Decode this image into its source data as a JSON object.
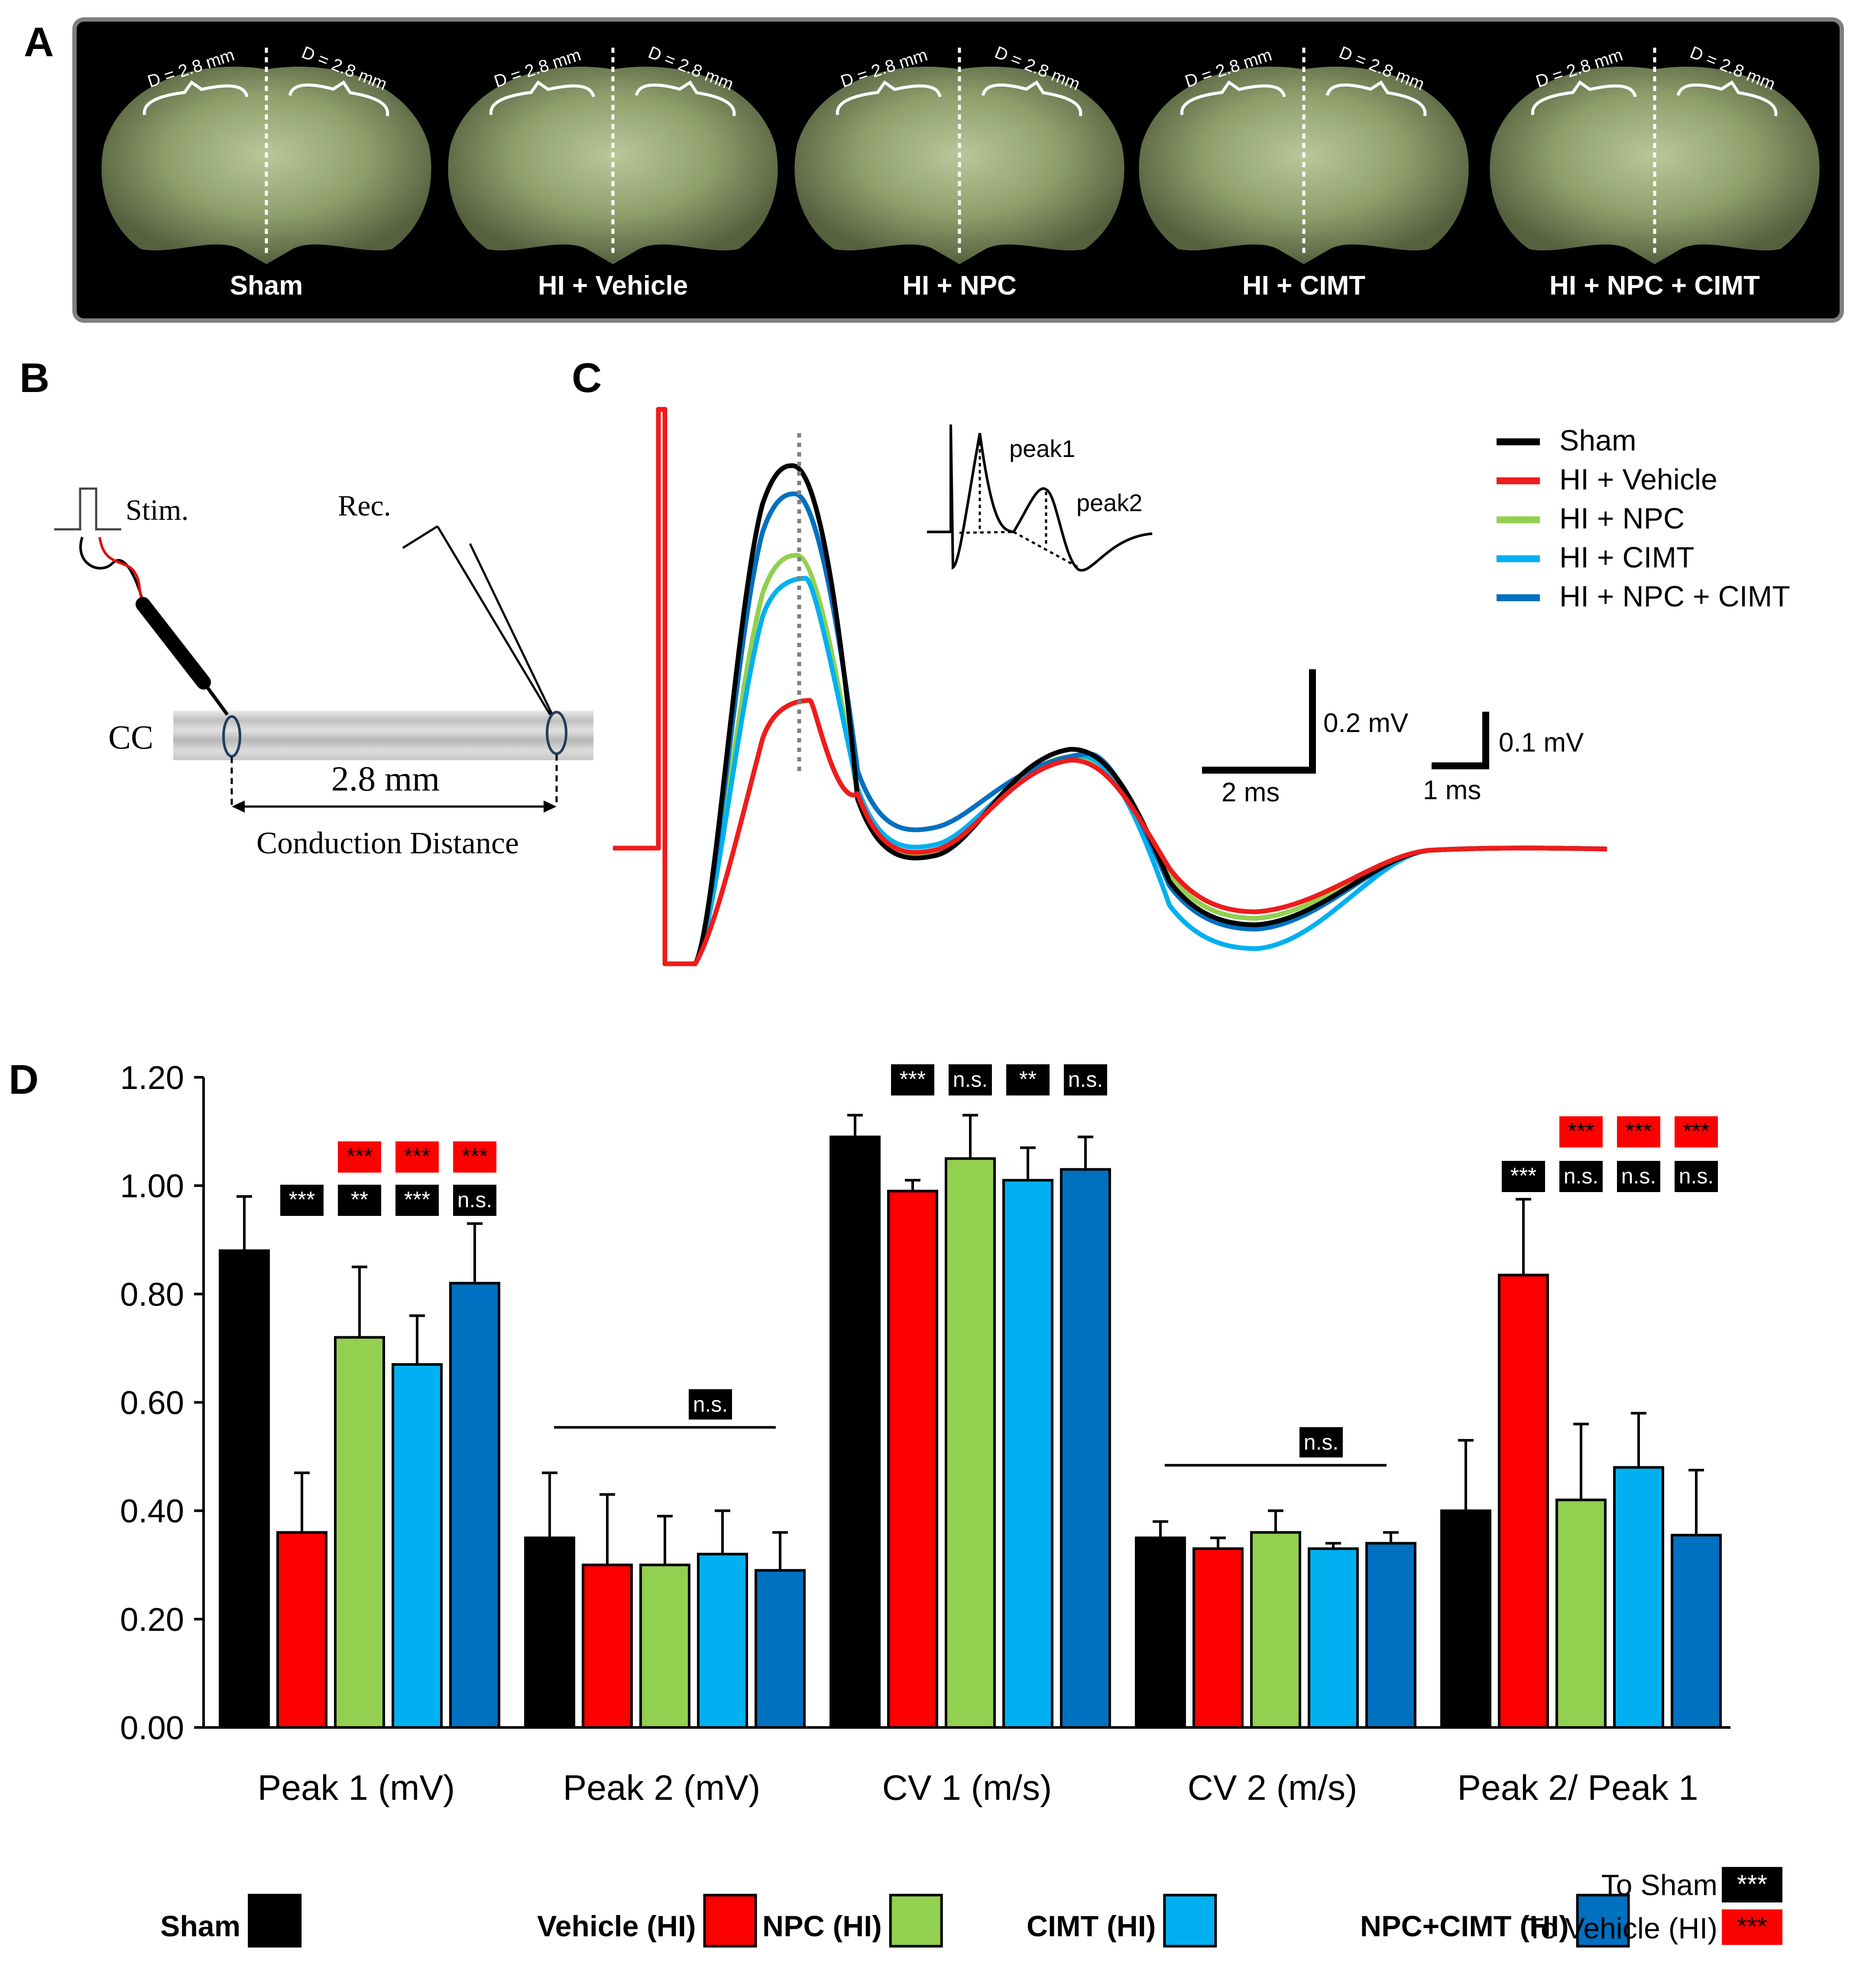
{
  "panels": {
    "a": "A",
    "b": "B",
    "c": "C",
    "d": "D"
  },
  "panel_a": {
    "distance_label": "D = 2.8 mm",
    "groups": [
      "Sham",
      "HI + Vehicle",
      "HI + NPC",
      "HI + CIMT",
      "HI + NPC + CIMT"
    ],
    "colors": {
      "frame": "#111111",
      "tissue": "#9aa87c",
      "text": "#ffffff"
    }
  },
  "panel_b": {
    "stim_label": "Stim.",
    "rec_label": "Rec.",
    "cc_label": "CC",
    "distance_label": "2.8 mm",
    "conduction_label": "Conduction Distance"
  },
  "panel_c": {
    "legend": [
      {
        "label": "Sham",
        "color": "#000000"
      },
      {
        "label": "HI + Vehicle",
        "color": "#ee1c1c"
      },
      {
        "label": "HI + NPC",
        "color": "#92d050"
      },
      {
        "label": "HI + CIMT",
        "color": "#00b0f0"
      },
      {
        "label": "HI + NPC + CIMT",
        "color": "#0070c0"
      }
    ],
    "inset_labels": {
      "peak1": "peak1",
      "peak2": "peak2"
    },
    "scale_bars": [
      {
        "vertical": "0.2 mV",
        "horizontal": "2 ms"
      },
      {
        "vertical": "0.1 mV",
        "horizontal": "1 ms"
      }
    ]
  },
  "chart_data": {
    "type": "bar",
    "title": "",
    "xlabel": "",
    "ylabel": "",
    "ylim": [
      0,
      1.2
    ],
    "yticks": [
      "0.00",
      "0.20",
      "0.40",
      "0.60",
      "0.80",
      "1.00",
      "1.20"
    ],
    "categories": [
      "Peak 1 (mV)",
      "Peak 2  (mV)",
      "CV 1 (m/s)",
      "CV 2 (m/s)",
      "Peak 2/ Peak 1"
    ],
    "series": [
      {
        "name": "Sham",
        "color": "#000000",
        "values": [
          0.88,
          0.35,
          1.09,
          0.35,
          0.4
        ],
        "errors": [
          0.1,
          0.12,
          0.04,
          0.03,
          0.13
        ]
      },
      {
        "name": "Vehicle (HI)",
        "color": "#ff0000",
        "values": [
          0.36,
          0.3,
          0.99,
          0.33,
          0.835
        ],
        "errors": [
          0.11,
          0.13,
          0.02,
          0.02,
          0.14
        ]
      },
      {
        "name": "NPC (HI)",
        "color": "#92d050",
        "values": [
          0.72,
          0.3,
          1.05,
          0.36,
          0.42
        ],
        "errors": [
          0.13,
          0.09,
          0.08,
          0.04,
          0.14
        ]
      },
      {
        "name": "CIMT (HI)",
        "color": "#00b0f0",
        "values": [
          0.67,
          0.32,
          1.01,
          0.33,
          0.48
        ],
        "errors": [
          0.09,
          0.08,
          0.06,
          0.01,
          0.1
        ]
      },
      {
        "name": "NPC+CIMT (HI)",
        "color": "#0070c0",
        "values": [
          0.82,
          0.29,
          1.03,
          0.34,
          0.355
        ],
        "errors": [
          0.11,
          0.07,
          0.06,
          0.02,
          0.12
        ]
      }
    ],
    "significance": {
      "to_sham": [
        [
          "",
          "***",
          "**",
          "***",
          "n.s."
        ],
        [
          "",
          "",
          "",
          "",
          ""
        ],
        [
          "",
          "***",
          "n.s.",
          "**",
          "n.s."
        ],
        [
          "",
          "",
          "",
          "",
          ""
        ],
        [
          "",
          "***",
          "n.s.",
          "n.s.",
          "n.s."
        ]
      ],
      "to_vehicle": [
        [
          "",
          "",
          "***",
          "***",
          "***"
        ],
        [
          "",
          "",
          "",
          "",
          ""
        ],
        [
          "",
          "",
          "",
          "",
          ""
        ],
        [
          "",
          "",
          "",
          "",
          ""
        ],
        [
          "",
          "",
          "***",
          "***",
          "***"
        ]
      ],
      "group_ns": [
        "",
        "n.s.",
        "",
        "n.s.",
        ""
      ]
    },
    "legend": {
      "items": [
        "Sham",
        "Vehicle (HI)",
        "NPC (HI)",
        "CIMT (HI)",
        "NPC+CIMT (HI)"
      ],
      "to_sham_label": "To Sham",
      "to_vehicle_label": "To Vehicle (HI)",
      "sig_example": "***"
    }
  }
}
